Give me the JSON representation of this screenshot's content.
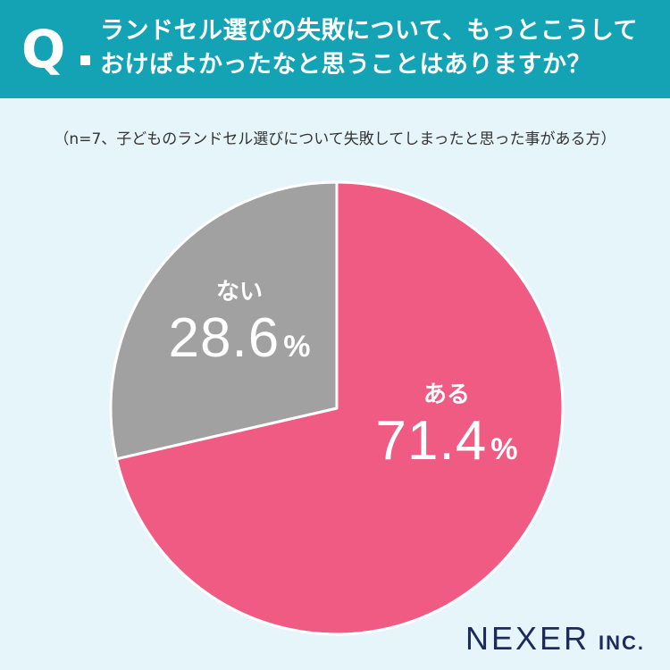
{
  "header": {
    "q_mark": "Q",
    "question_lines": [
      "ランドセル選びの失敗について、もっとこうして",
      "おけばよかったなと思うことはありますか？"
    ]
  },
  "note": "（n=7、子どものランドセル選びについて失敗してしまったと思った事がある方）",
  "chart_data": {
    "type": "pie",
    "categories": [
      "ある",
      "ない"
    ],
    "values": [
      71.4,
      28.6
    ],
    "unit": "%",
    "colors": [
      "#f05b84",
      "#a1a1a1"
    ],
    "start": "12 o'clock, clockwise",
    "labels": [
      {
        "name": "ある",
        "value_text": "71.4",
        "unit": "%"
      },
      {
        "name": "ない",
        "value_text": "28.6",
        "unit": "%"
      }
    ]
  },
  "logo": {
    "main": "NEXER",
    "sub": "INC."
  },
  "colors": {
    "background": "#e6f5fa",
    "header": "#14a3b5",
    "logo": "#1d2a5c"
  }
}
